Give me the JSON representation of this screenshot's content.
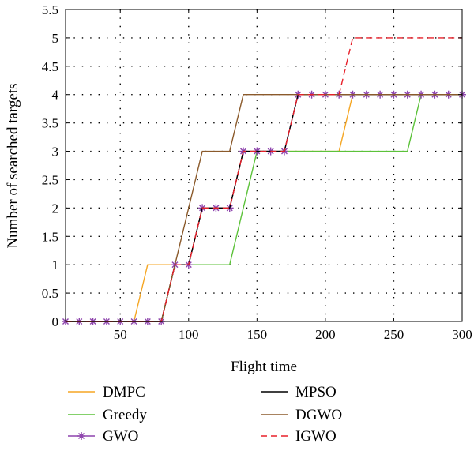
{
  "chart_data": {
    "type": "line",
    "title": "",
    "xlabel": "Flight time",
    "ylabel": "Number of searched targets",
    "xlim": [
      10,
      300
    ],
    "ylim": [
      0,
      5.5
    ],
    "xticks": [
      50,
      100,
      150,
      200,
      250,
      300
    ],
    "xtick_labels": [
      "50",
      "100",
      "150",
      "200",
      "250",
      "300"
    ],
    "yticks": [
      0,
      0.5,
      1,
      1.5,
      2,
      2.5,
      3,
      3.5,
      4,
      4.5,
      5,
      5.5
    ],
    "ytick_labels": [
      "0",
      "0.5",
      "1",
      "1.5",
      "2",
      "2.5",
      "3",
      "3.5",
      "4",
      "4.5",
      "5",
      "5.5"
    ],
    "grid": true,
    "legend_position": "bottom",
    "series": [
      {
        "name": "DMPC",
        "color": "#f5a623",
        "style": "solid",
        "marker": "none",
        "x": [
          10,
          60,
          70,
          80,
          90,
          100,
          110,
          120,
          130,
          140,
          150,
          160,
          170,
          180,
          190,
          200,
          210,
          220,
          230,
          240,
          250,
          260,
          270,
          280,
          290,
          300
        ],
        "y": [
          0,
          0,
          1,
          1,
          1,
          1,
          2,
          2,
          2,
          3,
          3,
          3,
          3,
          3,
          3,
          3,
          3,
          4,
          4,
          4,
          4,
          4,
          4,
          4,
          4,
          4
        ]
      },
      {
        "name": "Greedy",
        "color": "#5cc23a",
        "style": "solid",
        "marker": "none",
        "x": [
          10,
          80,
          90,
          130,
          150,
          260,
          270,
          300
        ],
        "y": [
          0,
          0,
          1,
          1,
          3,
          3,
          4,
          4
        ]
      },
      {
        "name": "GWO",
        "color": "#8e44ad",
        "style": "solid",
        "marker": "asterisk",
        "x": [
          10,
          20,
          30,
          40,
          50,
          60,
          70,
          80,
          90,
          100,
          110,
          120,
          130,
          140,
          150,
          160,
          170,
          180,
          190,
          200,
          210,
          220,
          230,
          240,
          250,
          260,
          270,
          280,
          290,
          300
        ],
        "y": [
          0,
          0,
          0,
          0,
          0,
          0,
          0,
          0,
          1,
          1,
          2,
          2,
          2,
          3,
          3,
          3,
          3,
          4,
          4,
          4,
          4,
          4,
          4,
          4,
          4,
          4,
          4,
          4,
          4,
          4
        ]
      },
      {
        "name": "MPSO",
        "color": "#000000",
        "style": "solid",
        "marker": "none",
        "x": [
          10,
          80,
          90,
          100,
          110,
          130,
          140,
          170,
          180,
          300
        ],
        "y": [
          0,
          0,
          1,
          1,
          2,
          2,
          3,
          3,
          4,
          4
        ]
      },
      {
        "name": "DGWO",
        "color": "#8b5a2b",
        "style": "solid",
        "marker": "none",
        "x": [
          10,
          80,
          90,
          110,
          130,
          140,
          300
        ],
        "y": [
          0,
          0,
          1,
          3,
          3,
          4,
          4
        ]
      },
      {
        "name": "IGWO",
        "color": "#e8202a",
        "style": "dashed",
        "marker": "none",
        "x": [
          10,
          80,
          90,
          100,
          110,
          130,
          140,
          170,
          180,
          210,
          220,
          300
        ],
        "y": [
          0,
          0,
          1,
          1,
          2,
          2,
          3,
          3,
          4,
          4,
          5,
          5
        ]
      }
    ]
  }
}
